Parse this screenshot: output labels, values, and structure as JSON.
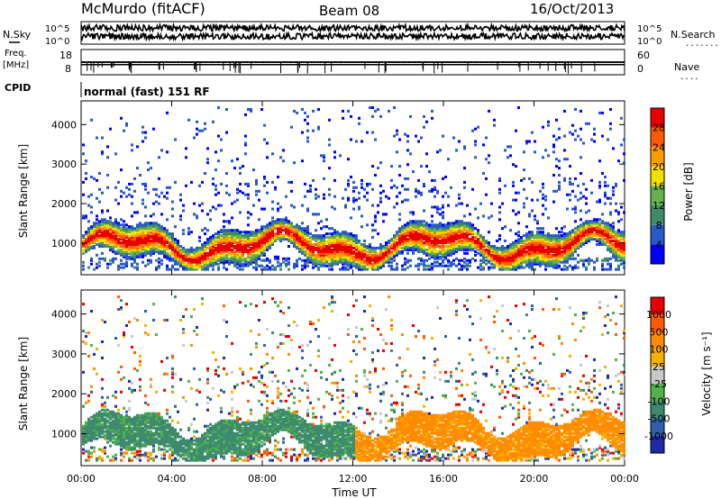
{
  "header": {
    "station": "McMurdo (fitACF)",
    "beam": "Beam 08",
    "date": "16/Oct/2013"
  },
  "left_labels": {
    "nsky": "N.Sky",
    "freq_line1": "Freq.",
    "freq_line2": "[MHz]",
    "cpid": "CPID"
  },
  "right_labels": {
    "nsearch": "N.Search",
    "nave": "Nave",
    "nsearch_dots": "........",
    "nave_dots": "...."
  },
  "cpid_text": "normal (fast) 151 RF",
  "chart_data": [
    {
      "type": "line",
      "name": "noise-panel",
      "left_ticks": [
        "10^5",
        "10^0"
      ],
      "right_ticks": [
        "10^5",
        "10^0"
      ],
      "series": [
        {
          "name": "N.Sky",
          "level": 0.72
        },
        {
          "name": "N.Search",
          "level": 0.35
        }
      ]
    },
    {
      "type": "line",
      "name": "freq-nave-panel",
      "left_ticks": [
        "18",
        "8"
      ],
      "right_ticks": [
        "60",
        "0"
      ],
      "series": [
        {
          "name": "Freq",
          "value_mhz": 12
        },
        {
          "name": "Nave",
          "value": 30
        }
      ]
    },
    {
      "type": "heatmap",
      "name": "power-panel",
      "ylabel": "Slant Range [km]",
      "ylim": [
        200,
        4600
      ],
      "yticks": [
        "1000",
        "2000",
        "3000",
        "4000"
      ],
      "xlim_hours": [
        0,
        24
      ],
      "colorbar": {
        "label": "Power [dB]",
        "ticks": [
          "4",
          "8",
          "12",
          "16",
          "20",
          "24",
          "28"
        ],
        "colors": [
          "#0000ff",
          "#2a5ac8",
          "#3f8a66",
          "#66b34d",
          "#f2e000",
          "#ff9d00",
          "#ff5a00",
          "#e60000"
        ]
      }
    },
    {
      "type": "heatmap",
      "name": "velocity-panel",
      "ylabel": "Slant Range [km]",
      "ylim": [
        200,
        4600
      ],
      "yticks": [
        "1000",
        "2000",
        "3000",
        "4000"
      ],
      "xlim_hours": [
        0,
        24
      ],
      "colorbar": {
        "label": "Velocity [m s⁻¹]",
        "ticks": [
          "1000",
          "500",
          "100",
          "25",
          "-25",
          "-100",
          "-500",
          "-1000"
        ],
        "colors": [
          "#1f2aa8",
          "#2f5fa8",
          "#3e8a6f",
          "#4fb24a",
          "#c8c8c8",
          "#f5b000",
          "#ff8c00",
          "#ff5a00",
          "#e60000"
        ]
      }
    }
  ],
  "x_axis": {
    "ticks": [
      "00:00",
      "04:00",
      "08:00",
      "12:00",
      "16:00",
      "20:00",
      "00:00"
    ],
    "label": "Time UT"
  }
}
